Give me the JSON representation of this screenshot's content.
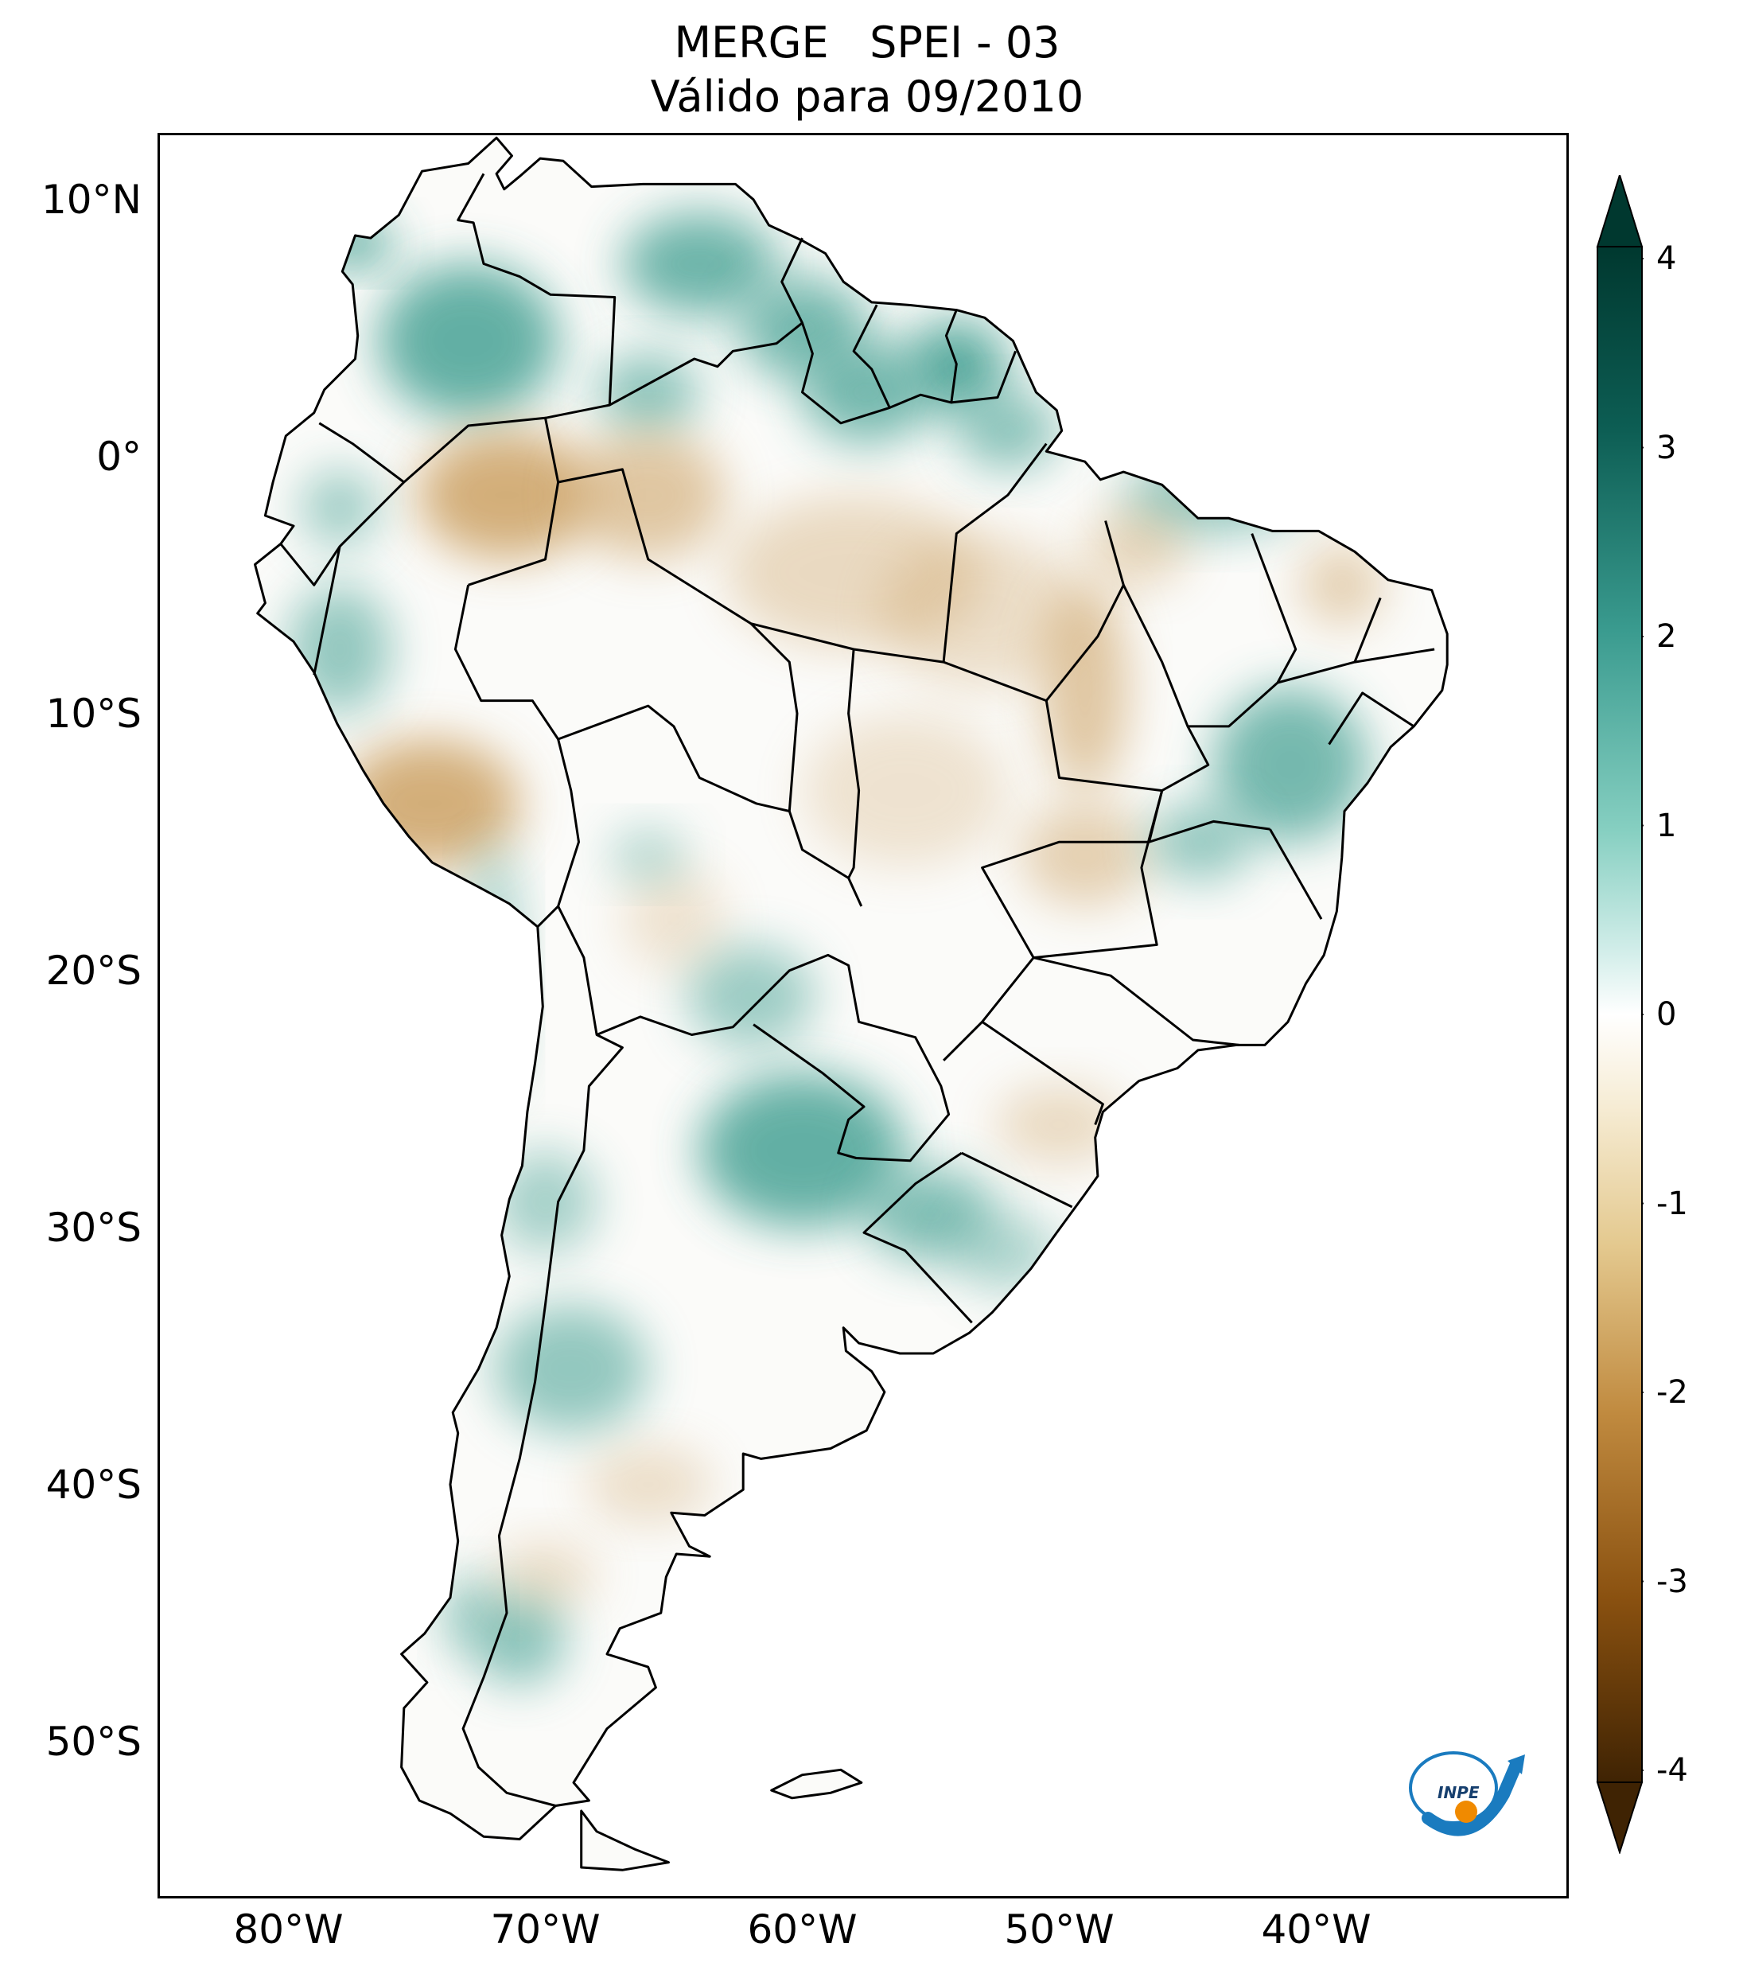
{
  "title": {
    "line1": "MERGE   SPEI - 03",
    "line2": "Válido para 09/2010"
  },
  "axes": {
    "lat_ticks": [
      {
        "value": 10,
        "label": "10°N"
      },
      {
        "value": 0,
        "label": "0°"
      },
      {
        "value": -10,
        "label": "10°S"
      },
      {
        "value": -20,
        "label": "20°S"
      },
      {
        "value": -30,
        "label": "30°S"
      },
      {
        "value": -40,
        "label": "40°S"
      },
      {
        "value": -50,
        "label": "50°S"
      }
    ],
    "lon_ticks": [
      {
        "value": -80,
        "label": "80°W"
      },
      {
        "value": -70,
        "label": "70°W"
      },
      {
        "value": -60,
        "label": "60°W"
      },
      {
        "value": -50,
        "label": "50°W"
      },
      {
        "value": -40,
        "label": "40°W"
      }
    ],
    "lon_range": [
      -85,
      -30
    ],
    "lat_range": [
      -56,
      12.5
    ]
  },
  "colorbar": {
    "min": -4,
    "max": 4,
    "ticks": [
      {
        "value": 4,
        "label": "4"
      },
      {
        "value": 3,
        "label": "3"
      },
      {
        "value": 2,
        "label": "2"
      },
      {
        "value": 1,
        "label": "1"
      },
      {
        "value": 0,
        "label": "0"
      },
      {
        "value": -1,
        "label": "-1"
      },
      {
        "value": -2,
        "label": "-2"
      },
      {
        "value": -3,
        "label": "-3"
      },
      {
        "value": -4,
        "label": "-4"
      }
    ],
    "colors": [
      "#3f2303",
      "#8a5110",
      "#c08a3f",
      "#e4c98f",
      "#f6ecd4",
      "#ffffff",
      "#d3eeea",
      "#86cfc1",
      "#3a9b8f",
      "#0d5e54",
      "#00382f"
    ],
    "extend": "both"
  },
  "map": {
    "region": "South America",
    "land_color": "#fbfbf9",
    "wet_color": "#3d9d8f",
    "dry_color": "#c99b5a",
    "border_color": "#000000"
  },
  "logo": {
    "text": "INPE",
    "ring_color": "#1a7bbf",
    "dot_color": "#f08a00"
  }
}
